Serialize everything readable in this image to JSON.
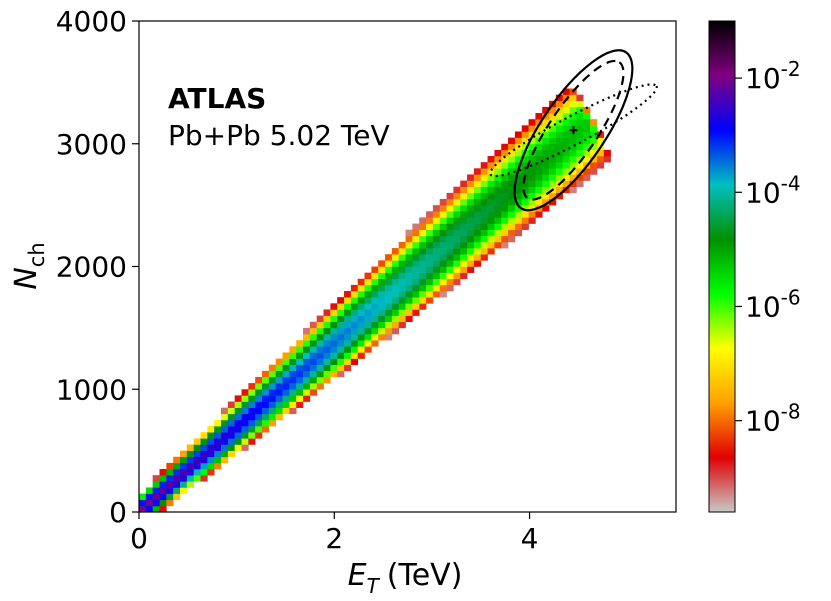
{
  "chart_data": {
    "type": "heatmap",
    "title": "",
    "xlabel": {
      "symbol": "E",
      "subscript": "T",
      "unit": "(TeV)"
    },
    "ylabel": {
      "symbol": "N",
      "subscript": "ch"
    },
    "xlim": [
      0,
      5.5
    ],
    "ylim": [
      0,
      4000
    ],
    "x_ticks": [
      0,
      2,
      4
    ],
    "y_ticks": [
      0,
      1000,
      2000,
      3000,
      4000
    ],
    "annotation": {
      "experiment": "ATLAS",
      "system": "Pb+Pb 5.02 TeV"
    },
    "colorbar": {
      "scale": "log",
      "ticks": [
        {
          "base": "10",
          "exp": "-2",
          "value": 0.01
        },
        {
          "base": "10",
          "exp": "-4",
          "value": 0.0001
        },
        {
          "base": "10",
          "exp": "-6",
          "value": 1e-06
        },
        {
          "base": "10",
          "exp": "-8",
          "value": 1e-08
        }
      ],
      "range_log10": [
        -9.6,
        -1.0
      ],
      "colors": [
        "#c8c8c8",
        "#e00000",
        "#ffa000",
        "#ffff00",
        "#00ff00",
        "#009000",
        "#00c0c0",
        "#0000ff",
        "#800080",
        "#000000"
      ]
    },
    "distribution": {
      "description": "2D event distribution along a narrow band",
      "axis_points": [
        [
          0.0,
          0
        ],
        [
          4.5,
          3100
        ]
      ],
      "peak_log10": -2.0,
      "tail_log10": -9.3,
      "end_log10": -5.3
    },
    "contours": [
      {
        "name": "solid-ellipse",
        "center": [
          4.45,
          3110
        ],
        "style": "solid"
      },
      {
        "name": "dashed-ellipse",
        "center": [
          4.45,
          3110
        ],
        "style": "dashed"
      },
      {
        "name": "dotted-ellipse",
        "center": [
          4.45,
          3110
        ],
        "style": "dotted"
      }
    ],
    "marker": {
      "name": "center-cross",
      "x": 4.45,
      "y": 3110
    }
  }
}
